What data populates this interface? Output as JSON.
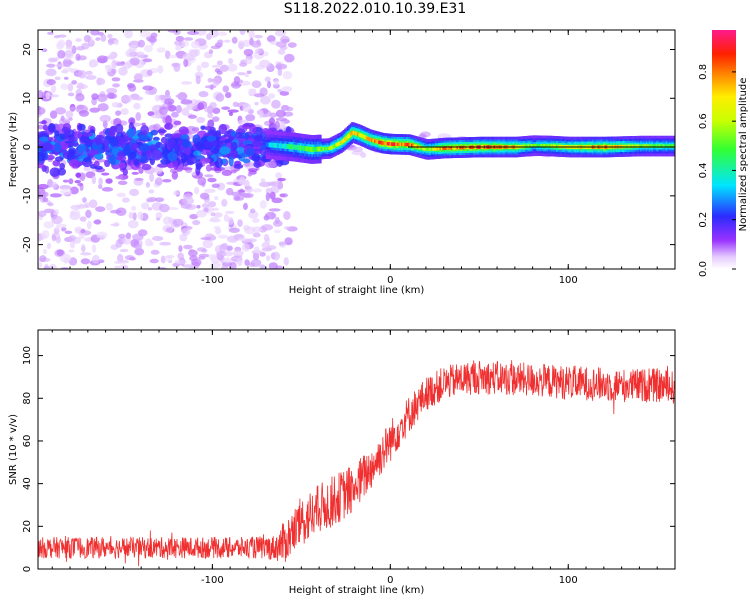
{
  "title": "S118.2022.010.10.39.E31",
  "chart_data": [
    {
      "type": "heatmap",
      "xlabel": "Height of straight line (km)",
      "ylabel": "Frequency (Hz)",
      "xlim": [
        -198,
        160
      ],
      "ylim": [
        -25,
        24
      ],
      "xticks": [
        -100,
        0,
        100
      ],
      "xtick_labels": [
        "-100",
        "0",
        "100"
      ],
      "yticks": [
        -20,
        -10,
        0,
        10,
        20
      ],
      "ytick_labels": [
        "-20",
        "-10",
        "0",
        "10",
        "20"
      ],
      "colorbar": {
        "label": "Normalized spectral amplitude",
        "range": [
          0,
          0.97
        ],
        "ticks": [
          0.0,
          0.2,
          0.4,
          0.6,
          0.8
        ],
        "tick_labels": [
          "0.0",
          "0.2",
          "0.4",
          "0.6",
          "0.8"
        ],
        "colormap": "white-purple-blue-cyan-green-yellow-red-magenta"
      },
      "ridge": {
        "description_free": true,
        "x": [
          -198,
          -150,
          -100,
          -70,
          -55,
          -45,
          -35,
          -28,
          -22,
          -18,
          -12,
          -5,
          0,
          10,
          20,
          30,
          50,
          70,
          80,
          90,
          100,
          120,
          140,
          160
        ],
        "freq": [
          0.5,
          0.5,
          0.5,
          0.5,
          0,
          -0.5,
          -0.3,
          1.0,
          3.0,
          2.5,
          1.5,
          0.8,
          0.6,
          0.5,
          -0.5,
          -0.2,
          0,
          0,
          0.3,
          0.2,
          0,
          0,
          0.2,
          0.2
        ],
        "amplitude": [
          0.3,
          0.3,
          0.3,
          0.3,
          0.45,
          0.5,
          0.55,
          0.65,
          0.75,
          0.7,
          0.72,
          0.85,
          0.9,
          0.85,
          0.55,
          0.8,
          0.85,
          0.75,
          0.5,
          0.6,
          0.65,
          0.8,
          0.55,
          0.5
        ]
      },
      "reference_line_freq": 0
    },
    {
      "type": "line",
      "xlabel": "Height of straight line (km)",
      "ylabel": "SNR (10 * v/v)",
      "xlim": [
        -198,
        160
      ],
      "ylim": [
        0,
        112
      ],
      "xticks": [
        -100,
        0,
        100
      ],
      "xtick_labels": [
        "-100",
        "0",
        "100"
      ],
      "yticks": [
        0,
        20,
        40,
        60,
        80,
        100
      ],
      "ytick_labels": [
        "0",
        "20",
        "40",
        "60",
        "80",
        "100"
      ],
      "series": [
        {
          "color": "#f03030",
          "x": [
            -198,
            -170,
            -140,
            -110,
            -80,
            -65,
            -60,
            -50,
            -40,
            -30,
            -20,
            -10,
            0,
            10,
            20,
            30,
            40,
            50,
            70,
            90,
            110,
            130,
            150,
            160
          ],
          "y": [
            10,
            10,
            10,
            10,
            10,
            10,
            12,
            22,
            28,
            33,
            38,
            48,
            60,
            72,
            82,
            87,
            89,
            90,
            89,
            88,
            87,
            86,
            86,
            85
          ],
          "noise": [
            5,
            5,
            5,
            5,
            5,
            6,
            10,
            12,
            12,
            12,
            12,
            10,
            10,
            9,
            8,
            8,
            8,
            8,
            8,
            8,
            8,
            8,
            8,
            8
          ]
        }
      ]
    }
  ]
}
